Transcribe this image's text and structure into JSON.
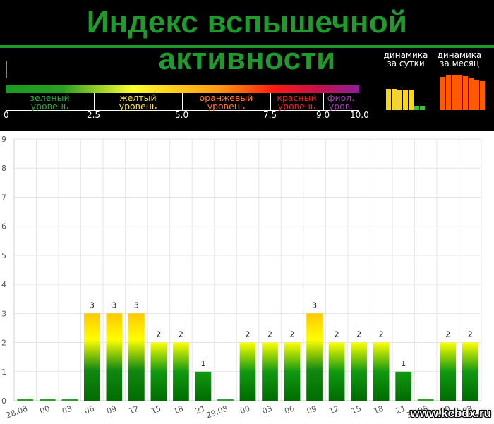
{
  "header": {
    "title": "Индекс вспышечной активности"
  },
  "scale": {
    "levels": [
      {
        "line1": "зеленый",
        "line2": "уровень",
        "color": "#2fa83a"
      },
      {
        "line1": "желтый",
        "line2": "уровень",
        "color": "#ffe633"
      },
      {
        "line1": "оранжевый",
        "line2": "уровень",
        "color": "#ff7a1a"
      },
      {
        "line1": "красный",
        "line2": "уровень",
        "color": "#ee2222"
      },
      {
        "line1": "фиол.",
        "line2": "уров.",
        "color": "#a33fb5"
      }
    ],
    "ticks": [
      "0",
      "2.5",
      "5.0",
      "7.5",
      "9.0",
      "10.0"
    ]
  },
  "dynamics": {
    "day_label": [
      "динамика",
      "за сутки"
    ],
    "month_label": [
      "динамика",
      "за месяц"
    ],
    "day_values": [
      3,
      3,
      2.9,
      2.8,
      2.8,
      0.6,
      0.6
    ],
    "day_colors": [
      "#ffd700",
      "#ffd700",
      "#ffd700",
      "#ffd700",
      "#ffd700",
      "#1ed21e",
      "#1ed21e"
    ],
    "month_values": [
      4.7,
      5.0,
      5.0,
      4.9,
      4.8,
      4.5,
      4.3,
      4.1
    ],
    "month_color": "#ff5a00"
  },
  "chart_data": {
    "type": "bar",
    "categories": [
      "28.08",
      "00",
      "03",
      "06",
      "09",
      "12",
      "15",
      "18",
      "21",
      "29.08",
      "00",
      "03",
      "06",
      "09",
      "12",
      "15",
      "18",
      "21",
      "30.08",
      "00",
      "03"
    ],
    "values": [
      0,
      0,
      0,
      3,
      3,
      3,
      2,
      2,
      1,
      0,
      2,
      2,
      2,
      3,
      2,
      2,
      2,
      1,
      0,
      2,
      2
    ],
    "ylim": [
      0,
      9
    ],
    "yticks": [
      0,
      1,
      2,
      3,
      4,
      5,
      6,
      7,
      8,
      9
    ],
    "grid": true,
    "title": "",
    "xlabel": "",
    "ylabel": ""
  },
  "watermark": "www.kcbdx.ru"
}
